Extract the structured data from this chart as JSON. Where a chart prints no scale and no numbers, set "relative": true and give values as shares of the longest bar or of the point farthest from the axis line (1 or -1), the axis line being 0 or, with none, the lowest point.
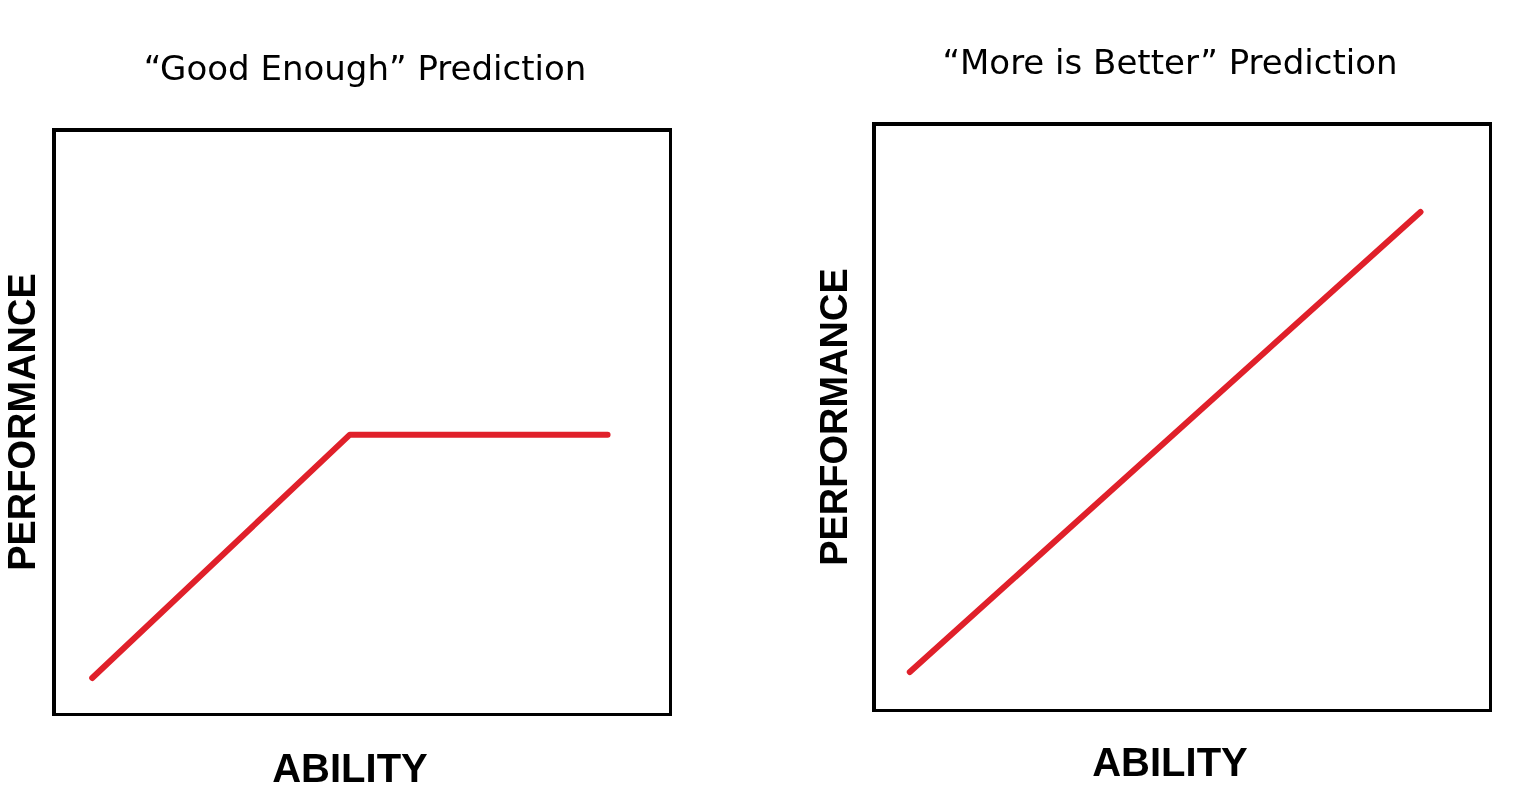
{
  "chart_data": [
    {
      "type": "line",
      "title": "“Good Enough” Prediction",
      "xlabel": "ABILITY",
      "ylabel": "PERFORMANCE",
      "relative": true,
      "categories": [
        null,
        null,
        null
      ],
      "series": [
        {
          "color": "#e0202a",
          "values": [
            0.135,
            1,
            1
          ]
        }
      ]
    },
    {
      "type": "line",
      "title": "“More is Better” Prediction",
      "xlabel": "ABILITY",
      "ylabel": "PERFORMANCE",
      "relative": true,
      "categories": [
        null,
        null
      ],
      "series": [
        {
          "color": "#e0202a",
          "values": [
            0.08,
            1
          ]
        }
      ]
    }
  ]
}
